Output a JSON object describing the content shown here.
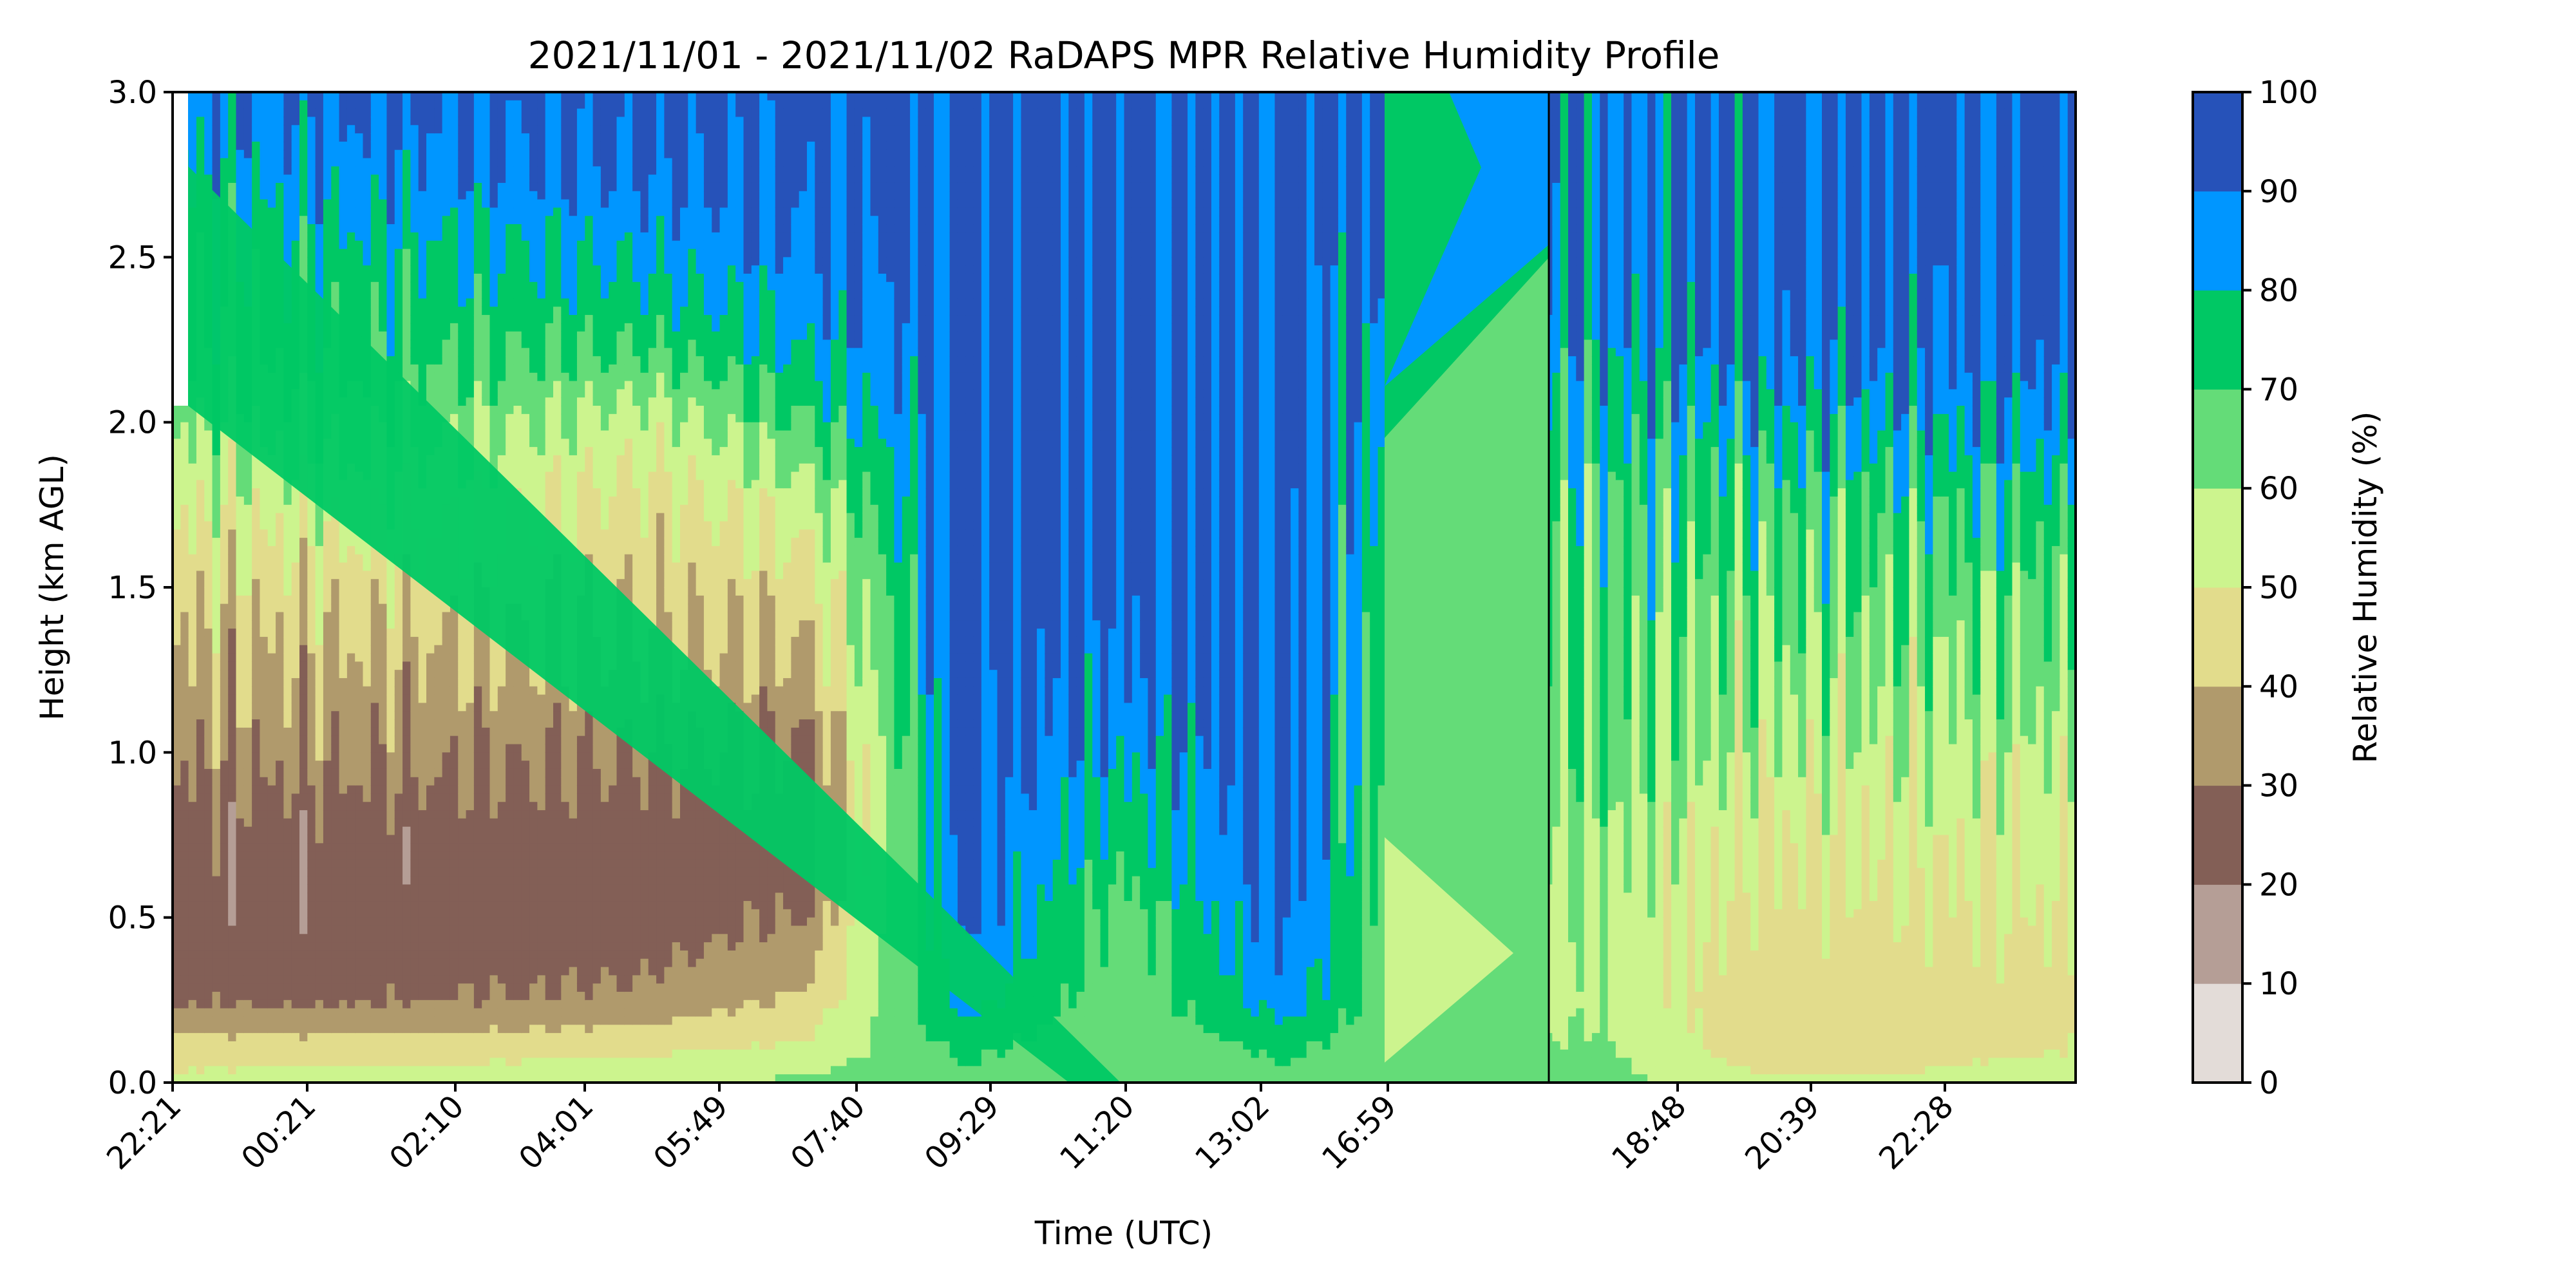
{
  "chart_data": {
    "type": "heatmap",
    "subtype": "filled-contour",
    "title": "2021/11/01 - 2021/11/02 RaDAPS MPR Relative Humidity Profile",
    "xlabel": "Time (UTC)",
    "ylabel": "Height (km AGL)",
    "colorbar_label": "Relative Humidity (%)",
    "ylim": [
      0,
      3.0
    ],
    "yticks": [
      "0.0",
      "0.5",
      "1.0",
      "1.5",
      "2.0",
      "2.5",
      "3.0"
    ],
    "xtick_labels": [
      "22:21",
      "00:21",
      "02:10",
      "04:01",
      "05:49",
      "07:40",
      "09:29",
      "11:20",
      "13:02",
      "16:59",
      "18:48",
      "20:39",
      "22:28"
    ],
    "xtick_label_rotation": 45,
    "colorbar_ticks": [
      "0",
      "10",
      "20",
      "30",
      "40",
      "50",
      "60",
      "70",
      "80",
      "90",
      "100"
    ],
    "levels": [
      0,
      10,
      20,
      30,
      40,
      50,
      60,
      70,
      80,
      90,
      100
    ],
    "level_colors": [
      "#e3dcd8",
      "#b59e96",
      "#835f56",
      "#b09a6c",
      "#e2dc8c",
      "#ccf48e",
      "#64dc78",
      "#00c864",
      "#0096ff",
      "#2652b9"
    ],
    "contour_line_color": "#000000",
    "grid": false,
    "time_columns_relative_humidity_by_height": {
      "heights_km": [
        0.0,
        0.1,
        0.25,
        0.5,
        0.75,
        1.0,
        1.25,
        1.5,
        1.75,
        2.0,
        2.25,
        2.5,
        2.75,
        3.0
      ],
      "columns": [
        {
          "time": "22:21",
          "rh": [
            52,
            46,
            28,
            24,
            25,
            33,
            38,
            44,
            52,
            62,
            72,
            72,
            80,
            86
          ]
        },
        {
          "time": "00:21",
          "rh": [
            55,
            45,
            28,
            23,
            24,
            33,
            38,
            45,
            55,
            65,
            74,
            77,
            85,
            92
          ]
        },
        {
          "time": "02:10",
          "rh": [
            56,
            46,
            30,
            25,
            25,
            32,
            38,
            44,
            52,
            62,
            72,
            78,
            88,
            93
          ]
        },
        {
          "time": "04:01",
          "rh": [
            58,
            48,
            32,
            25,
            25,
            30,
            38,
            42,
            46,
            55,
            72,
            82,
            90,
            94
          ]
        },
        {
          "time": "05:49",
          "rh": [
            62,
            52,
            42,
            30,
            25,
            28,
            38,
            45,
            55,
            70,
            82,
            88,
            93,
            94
          ]
        },
        {
          "time": "07:40",
          "rh": [
            68,
            72,
            85,
            92,
            93,
            94,
            94,
            94,
            94,
            94,
            94,
            94,
            94,
            94
          ]
        },
        {
          "time": "09:29",
          "rh": [
            66,
            62,
            62,
            66,
            74,
            82,
            90,
            94,
            94,
            94,
            94,
            94,
            94,
            94
          ]
        },
        {
          "time": "11:20",
          "rh": [
            68,
            72,
            86,
            92,
            94,
            94,
            94,
            94,
            94,
            94,
            94,
            94,
            94,
            94
          ]
        },
        {
          "time": "13:02",
          "rh": [
            62,
            58,
            54,
            52,
            52,
            56,
            62,
            64,
            66,
            72,
            80,
            92,
            94,
            94
          ]
        },
        {
          "time": "16:59",
          "rh": [
            64,
            62,
            58,
            58,
            62,
            66,
            66,
            68,
            72,
            76,
            84,
            86,
            88,
            90
          ]
        },
        {
          "time": "18:48",
          "rh": [
            52,
            44,
            44,
            46,
            50,
            56,
            62,
            66,
            70,
            80,
            92,
            94,
            94,
            94
          ]
        },
        {
          "time": "20:39",
          "rh": [
            52,
            46,
            45,
            48,
            52,
            56,
            62,
            66,
            72,
            82,
            92,
            94,
            94,
            94
          ]
        },
        {
          "time": "22:28",
          "rh": [
            58,
            50,
            48,
            50,
            54,
            58,
            64,
            68,
            74,
            86,
            93,
            94,
            94,
            94
          ]
        }
      ]
    }
  }
}
